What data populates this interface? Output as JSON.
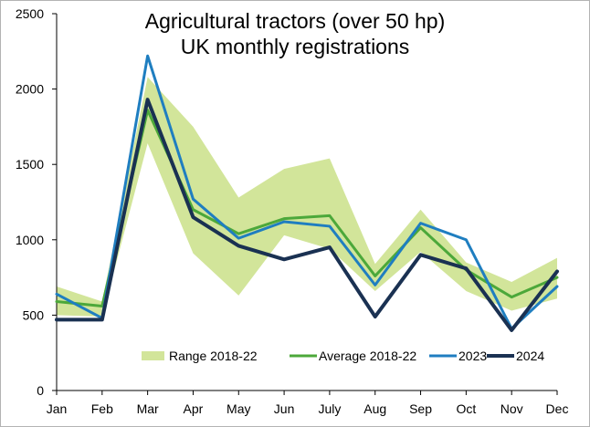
{
  "chart_data": {
    "type": "line",
    "title_lines": [
      "Agricultural tractors (over 50 hp)",
      "UK monthly registrations"
    ],
    "categories": [
      "Jan",
      "Feb",
      "Mar",
      "Apr",
      "May",
      "Jun",
      "July",
      "Aug",
      "Sep",
      "Oct",
      "Nov",
      "Dec"
    ],
    "ylim": [
      0,
      2500
    ],
    "yticks": [
      0,
      500,
      1000,
      1500,
      2000,
      2500
    ],
    "grid": false,
    "legend_position": "bottom",
    "range": {
      "name": "Range 2018-22",
      "color": "#d2e59a",
      "low": [
        500,
        490,
        1640,
        910,
        630,
        1030,
        940,
        660,
        920,
        660,
        530,
        610
      ],
      "high": [
        690,
        590,
        2080,
        1750,
        1280,
        1470,
        1540,
        840,
        1200,
        850,
        720,
        880
      ]
    },
    "series": [
      {
        "name": "Average 2018-22",
        "color": "#4ca83a",
        "width": 3,
        "values": [
          590,
          560,
          1860,
          1200,
          1040,
          1140,
          1160,
          760,
          1080,
          800,
          620,
          750
        ]
      },
      {
        "name": "2023",
        "color": "#1f7ec0",
        "width": 3,
        "values": [
          640,
          480,
          2220,
          1270,
          1010,
          1120,
          1090,
          700,
          1110,
          1000,
          410,
          690
        ]
      },
      {
        "name": "2024",
        "color": "#1a3152",
        "width": 4,
        "values": [
          470,
          470,
          1930,
          1150,
          960,
          870,
          950,
          490,
          900,
          810,
          400,
          790
        ]
      }
    ]
  }
}
